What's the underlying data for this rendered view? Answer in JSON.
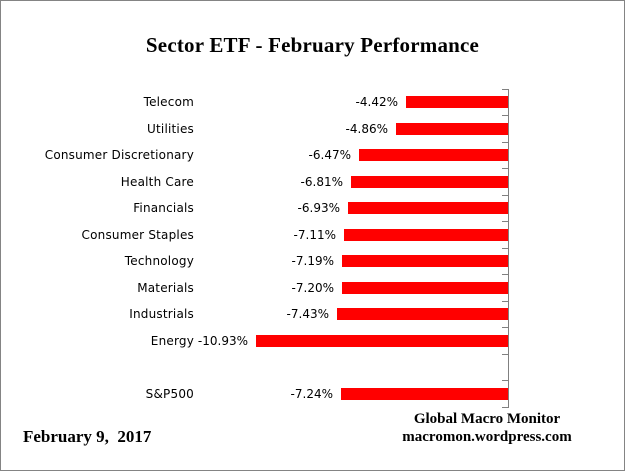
{
  "title": "Sector ETF - February Performance",
  "footer": {
    "date": "February 9,  2017",
    "attribution": [
      "Global Macro Monitor",
      "macromon.wordpress.com"
    ]
  },
  "colors": {
    "bar": "#ff0000",
    "axis": "#808080",
    "border": "#848484",
    "text": "#000000",
    "background": "#ffffff"
  },
  "chart_data": {
    "type": "bar",
    "orientation": "horizontal",
    "title": "Sector ETF - February Performance",
    "xlabel": "",
    "ylabel": "",
    "xlim": [
      -22,
      0
    ],
    "grid": false,
    "legend": false,
    "value_suffix": "%",
    "rows": [
      {
        "category": "Telecom",
        "value": -4.42,
        "label": "-4.42%"
      },
      {
        "category": "Utilities",
        "value": -4.86,
        "label": "-4.86%"
      },
      {
        "category": "Consumer Discretionary",
        "value": -6.47,
        "label": "-6.47%"
      },
      {
        "category": "Health Care",
        "value": -6.81,
        "label": "-6.81%"
      },
      {
        "category": "Financials",
        "value": -6.93,
        "label": "-6.93%"
      },
      {
        "category": "Consumer Staples",
        "value": -7.11,
        "label": "-7.11%"
      },
      {
        "category": "Technology",
        "value": -7.19,
        "label": "-7.19%"
      },
      {
        "category": "Materials",
        "value": -7.2,
        "label": "-7.20%"
      },
      {
        "category": "Industrials",
        "value": -7.43,
        "label": "-7.43%"
      },
      {
        "category": "Energy",
        "value": -10.93,
        "label": "-10.93%"
      },
      {
        "category": "",
        "value": null,
        "label": ""
      },
      {
        "category": "S&P500",
        "value": -7.24,
        "label": "-7.24%"
      }
    ]
  }
}
